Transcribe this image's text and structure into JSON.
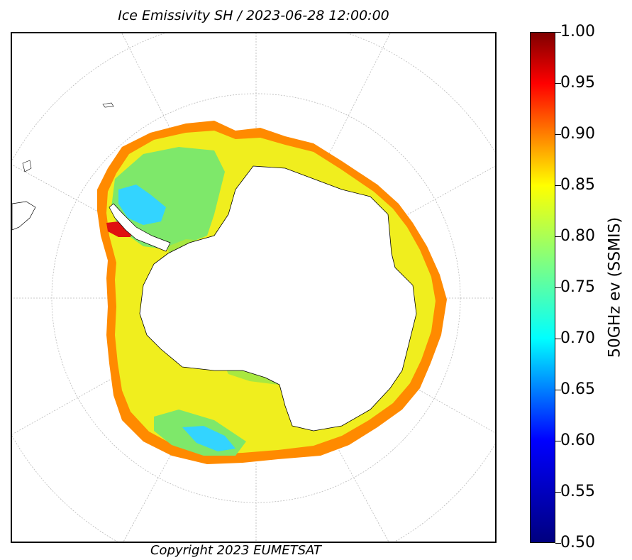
{
  "title": "Ice Emissivity SH / 2023-06-28 12:00:00",
  "copyright": "Copyright 2023 EUMETSAT",
  "colorbar": {
    "label": "50GHz ev (SSMIS)",
    "min": 0.5,
    "max": 1.0,
    "ticks": [
      "1.00",
      "0.95",
      "0.90",
      "0.85",
      "0.80",
      "0.75",
      "0.70",
      "0.65",
      "0.60",
      "0.55",
      "0.50"
    ],
    "colormap": "jet"
  },
  "map": {
    "projection": "south polar stereographic",
    "graticule": true,
    "colors": {
      "land": "#ffffff",
      "coastline": "#000000",
      "graticule": "#b8b8b8",
      "ice_dominant": "#f5f020",
      "ice_edge": "#ff8a00",
      "ice_low": "#30d8ff"
    }
  }
}
